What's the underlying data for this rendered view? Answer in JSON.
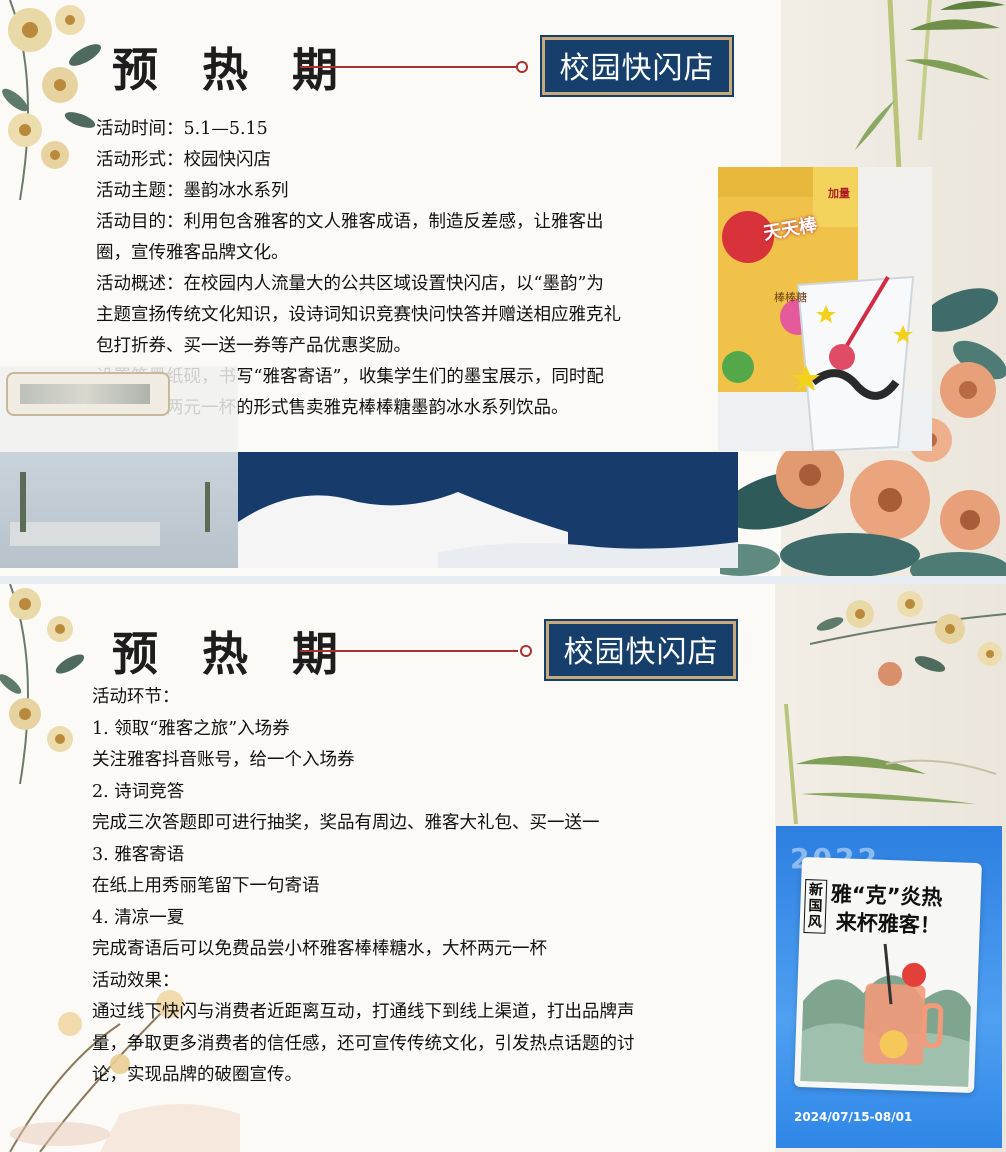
{
  "slide1": {
    "title": "预 热 期",
    "tag": "校园快闪店",
    "lines": [
      "活动时间：5.1—5.15",
      "活动形式：校园快闪店",
      "活动主题：墨韵冰水系列",
      "活动目的：利用包含雅客的文人雅客成语，制造反差感，让雅客出",
      "圈，宣传雅客品牌文化。",
      "活动概述：在校园内人流量大的公共区域设置快闪店，以“墨韵”为",
      "主题宣扬传统文化知识，设诗词知识竞赛快问快答并赠送相应雅克礼",
      "包打折券、买一送一券等产品优惠奖励。",
      "设置笔墨纸砚，书写“雅客寄语”，收集学生们的墨宝展示，同时配",
      "合主题以两元一杯的形式售卖雅克棒棒糖墨韵冰水系列饮品。"
    ],
    "photo": {
      "jar_brand": "天天棒",
      "jar_tag": "加量",
      "jar_label": "棒棒糖"
    }
  },
  "slide2": {
    "title": "预 热 期",
    "tag": "校园快闪店",
    "lines": [
      "活动环节：",
      "1. 领取“雅客之旅”入场券",
      "关注雅客抖音账号，给一个入场券",
      "2. 诗词竞答",
      "完成三次答题即可进行抽奖，奖品有周边、雅客大礼包、买一送一",
      "3. 雅客寄语",
      "在纸上用秀丽笔留下一句寄语",
      "4. 清凉一夏",
      "完成寄语后可以免费品尝小杯雅客棒棒糖水，大杯两元一杯",
      "活动效果：",
      "通过线下快闪与消费者近距离互动，打通线下到线上渠道，打出品牌声",
      "量，争取更多消费者的信任感，还可宣传传统文化，引发热点话题的讨",
      "论，实现品牌的破圈宣传。"
    ],
    "poster": {
      "year": "2022",
      "badge": "新国风",
      "headline_1": "雅“克”炎热",
      "headline_2": "来杯雅客！",
      "date": "2024/07/15-08/01"
    }
  },
  "colors": {
    "navy": "#163f6b",
    "accent_red": "#a8332c",
    "gold": "#c8a97a",
    "flower_orange": "#e8a07a",
    "leaf_teal": "#3f6b6a"
  }
}
